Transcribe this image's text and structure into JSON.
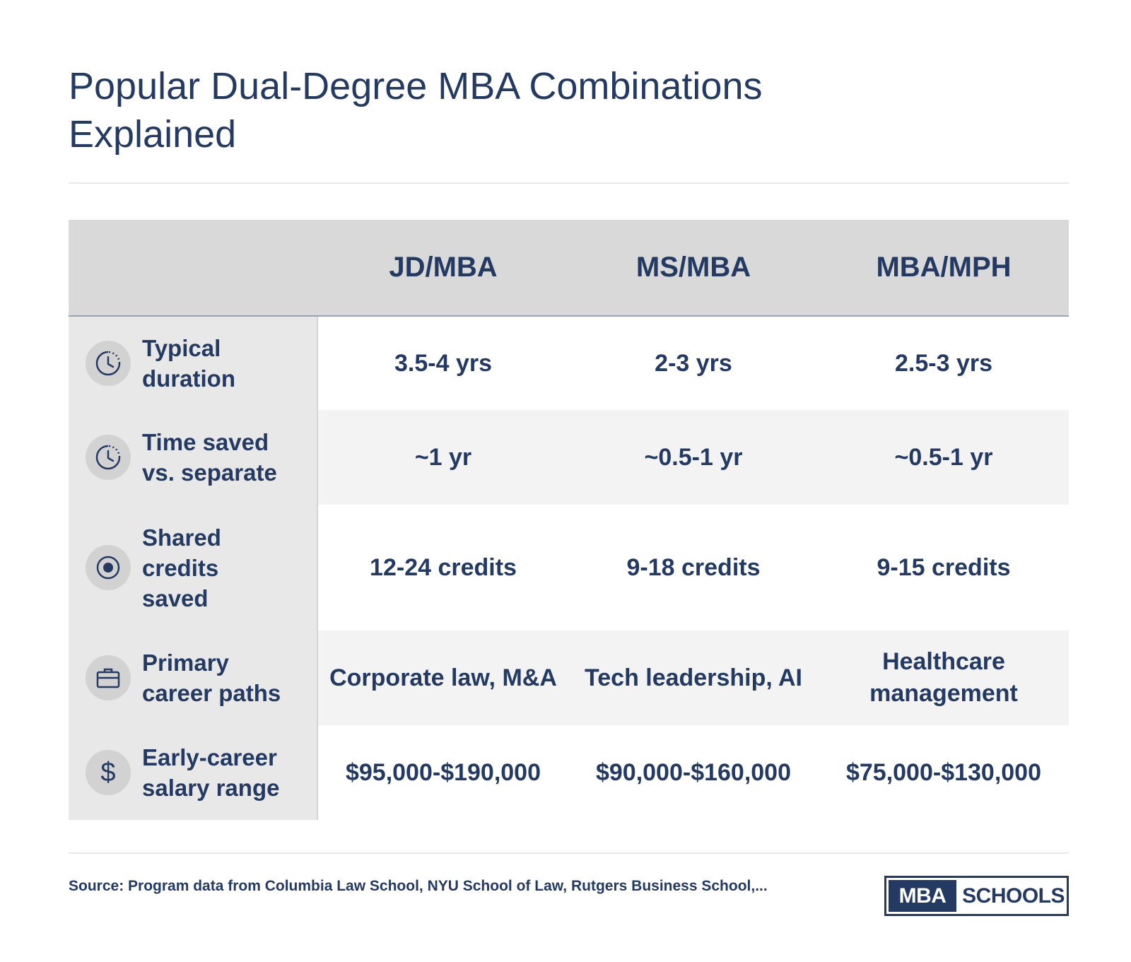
{
  "title": "Popular Dual-Degree MBA Combinations Explained",
  "table": {
    "columns": [
      "JD/MBA",
      "MS/MBA",
      "MBA/MPH"
    ],
    "rows": [
      {
        "icon": "clock-icon",
        "label": "Typical duration",
        "values": [
          "3.5-4 yrs",
          "2-3 yrs",
          "2.5-3 yrs"
        ]
      },
      {
        "icon": "clock-icon",
        "label": "Time saved vs. separate",
        "values": [
          "~1 yr",
          "~0.5-1 yr",
          "~0.5-1 yr"
        ]
      },
      {
        "icon": "target-icon",
        "label": "Shared credits saved",
        "values": [
          "12-24 credits",
          "9-18 credits",
          "9-15 credits"
        ]
      },
      {
        "icon": "briefcase-icon",
        "label": "Primary career paths",
        "values": [
          "Corporate law, M&A",
          "Tech leadership, AI",
          "Healthcare management"
        ]
      },
      {
        "icon": "dollar-icon",
        "label": "Early-career salary range",
        "values": [
          "$95,000-$190,000",
          "$90,000-$160,000",
          "$75,000-$130,000"
        ]
      }
    ]
  },
  "source": "Source: Program data from Columbia Law School, NYU School of Law, Rutgers Business School,...",
  "logo": {
    "part_a": "MBA",
    "part_b": "SCHOOLS"
  },
  "colors": {
    "navy": "#243a63",
    "header_bg": "#d9d9d9",
    "label_bg": "#e8e8e8",
    "stripe_bg": "#f3f3f3"
  }
}
